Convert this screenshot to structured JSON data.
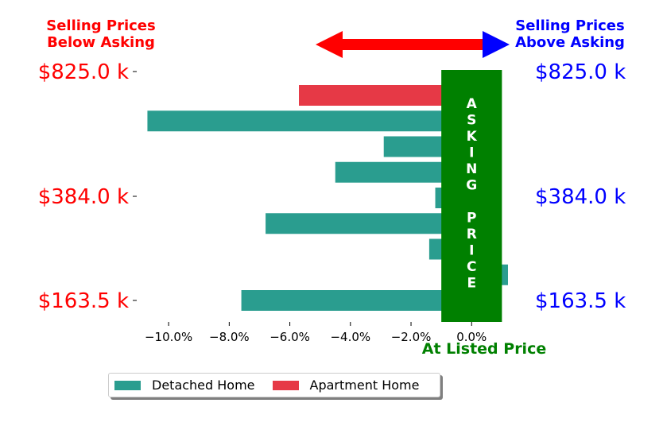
{
  "chart_data": {
    "type": "bar",
    "orientation": "horizontal",
    "title_left": [
      "Selling Prices",
      "Below Asking"
    ],
    "title_right": [
      "Selling Prices",
      "Above Asking"
    ],
    "left_tick_labels": [
      "$825.0 k",
      "$384.0 k",
      "$163.5 k"
    ],
    "right_tick_labels": [
      "$825.0 k",
      "$384.0 k",
      "$163.5 k"
    ],
    "x_ticks": [
      -10,
      -8,
      -6,
      -4,
      -2,
      0
    ],
    "x_tick_labels": [
      "−10.0%",
      "−8.0%",
      "−6.0%",
      "−4.0%",
      "−2.0%",
      "0.0%"
    ],
    "xlim": [
      -11,
      1.2
    ],
    "xlabel": "At Listed Price",
    "asking_band_text": [
      "A",
      "S",
      "K",
      "I",
      "N",
      "G",
      "",
      "P",
      "R",
      "I",
      "C",
      "E"
    ],
    "bars": [
      {
        "value": -5.7,
        "series": "Apartment Home"
      },
      {
        "value": -10.7,
        "series": "Detached Home"
      },
      {
        "value": -2.9,
        "series": "Detached Home"
      },
      {
        "value": -4.5,
        "series": "Detached Home"
      },
      {
        "value": -1.2,
        "series": "Detached Home"
      },
      {
        "value": -6.8,
        "series": "Detached Home"
      },
      {
        "value": -1.4,
        "series": "Detached Home"
      },
      {
        "value": 1.2,
        "series": "Detached Home"
      },
      {
        "value": -7.6,
        "series": "Detached Home"
      }
    ],
    "series": [
      {
        "name": "Detached Home",
        "color": "#2a9d8f"
      },
      {
        "name": "Apartment Home",
        "color": "#e63946"
      }
    ],
    "colors": {
      "below": "#ff0000",
      "above": "#0000ff",
      "asking": "#008000",
      "band_text": "#ffffff"
    },
    "legend_position": "bottom"
  }
}
